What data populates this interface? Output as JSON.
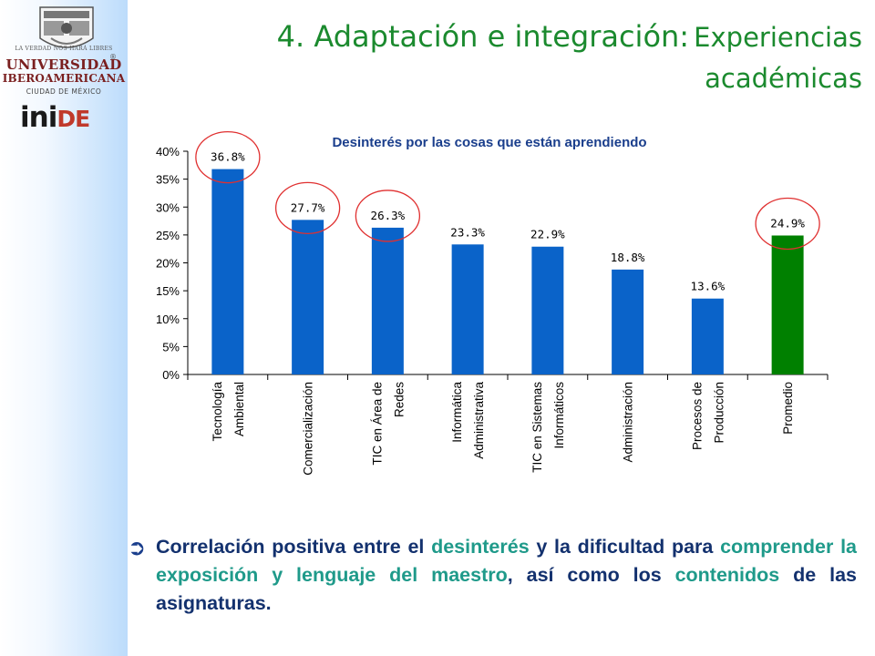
{
  "header": {
    "title_part1": "4. Adaptación e integración:",
    "title_part2": "Experiencias académicas"
  },
  "sidebar": {
    "logo_motto": "LA VERDAD NOS HARÁ LIBRES",
    "university_line1": "UNIVERSIDAD",
    "university_line2": "IBEROAMERICANA",
    "university_line3": "CIUDAD DE MÉXICO",
    "institute_part1": "ini",
    "institute_part2": "DE",
    "registered_mark": "®"
  },
  "chart_data": {
    "type": "bar",
    "title": "Desinterés por las cosas que están aprendiendo",
    "xlabel": "",
    "ylabel": "",
    "categories": [
      [
        "Tecnología",
        "Ambiental"
      ],
      [
        "Comercialización"
      ],
      [
        "TIC en Área de",
        "Redes"
      ],
      [
        "Informática",
        "Administrativa"
      ],
      [
        "TIC en Sistemas",
        "Informáticos"
      ],
      [
        "Administración"
      ],
      [
        "Procesos de",
        "Producción"
      ],
      [
        "Promedio"
      ]
    ],
    "values": [
      36.8,
      27.7,
      26.3,
      23.3,
      22.9,
      18.8,
      13.6,
      24.9
    ],
    "data_labels": [
      "36.8%",
      "27.7%",
      "26.3%",
      "23.3%",
      "22.9%",
      "18.8%",
      "13.6%",
      "24.9%"
    ],
    "bar_colors": [
      "#0a63c9",
      "#0a63c9",
      "#0a63c9",
      "#0a63c9",
      "#0a63c9",
      "#0a63c9",
      "#0a63c9",
      "#008000"
    ],
    "circled": [
      true,
      true,
      true,
      false,
      false,
      false,
      false,
      true
    ],
    "ylim": [
      0,
      40
    ],
    "yticks": [
      "0%",
      "5%",
      "10%",
      "15%",
      "20%",
      "25%",
      "30%",
      "35%",
      "40%"
    ],
    "grid": false,
    "title_color": "#1a3e8c",
    "circle_color": "#e03030"
  },
  "bullet": {
    "arrow": "➲",
    "parts": [
      {
        "text": "Correlación positiva entre el ",
        "highlight": false
      },
      {
        "text": "desinterés",
        "highlight": true
      },
      {
        "text": " y la dificultad para ",
        "highlight": false
      },
      {
        "text": "comprender la exposición y lenguaje del maestro",
        "highlight": true
      },
      {
        "text": ", así como los ",
        "highlight": false
      },
      {
        "text": "contenidos",
        "highlight": true
      },
      {
        "text": " de las asignaturas.",
        "highlight": false
      }
    ]
  }
}
